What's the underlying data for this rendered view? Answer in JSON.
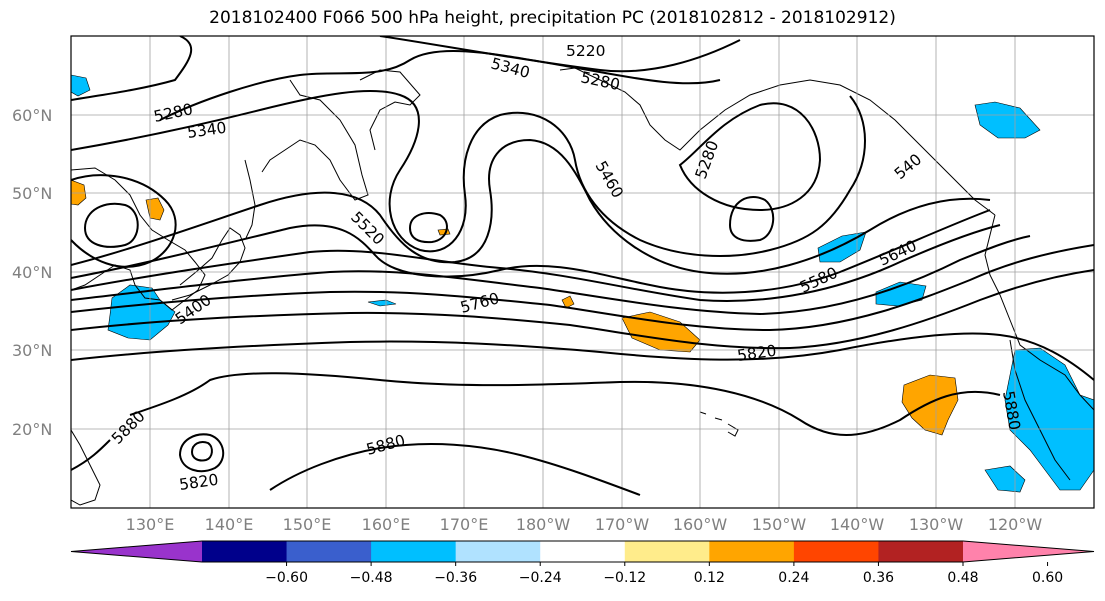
{
  "title": "2018102400 F066 500 hPa height, precipitation PC (2018102812 - 2018102912)",
  "lat_labels": [
    "60°N",
    "50°N",
    "40°N",
    "30°N",
    "20°N"
  ],
  "lon_labels": [
    "130°E",
    "140°E",
    "150°E",
    "160°E",
    "170°E",
    "180°W",
    "170°W",
    "160°W",
    "150°W",
    "140°W",
    "130°W",
    "120°W"
  ],
  "contour_labels": [
    "5220",
    "5280",
    "5340",
    "5280",
    "5340",
    "5280",
    "5460",
    "5520",
    "5400",
    "5640",
    "5580",
    "5760",
    "5820",
    "5880",
    "5820",
    "5880",
    "5880",
    "540"
  ],
  "colorbar": {
    "colors": [
      "#9933cc",
      "#00008b",
      "#3a5fcd",
      "#00bfff",
      "#b0e2ff",
      "#ffffff",
      "#ffec8b",
      "#ffa500",
      "#ff4500",
      "#b22222",
      "#ff82ab"
    ],
    "ticks": [
      "−0.60",
      "−0.48",
      "−0.36",
      "−0.24",
      "−0.12",
      "0.12",
      "0.24",
      "0.36",
      "0.48",
      "0.60"
    ]
  },
  "colors": {
    "contour": "#000000",
    "coast": "#000000",
    "grid": "#a0a0a0",
    "positive": "#ffa500",
    "negative": "#00bfff"
  }
}
